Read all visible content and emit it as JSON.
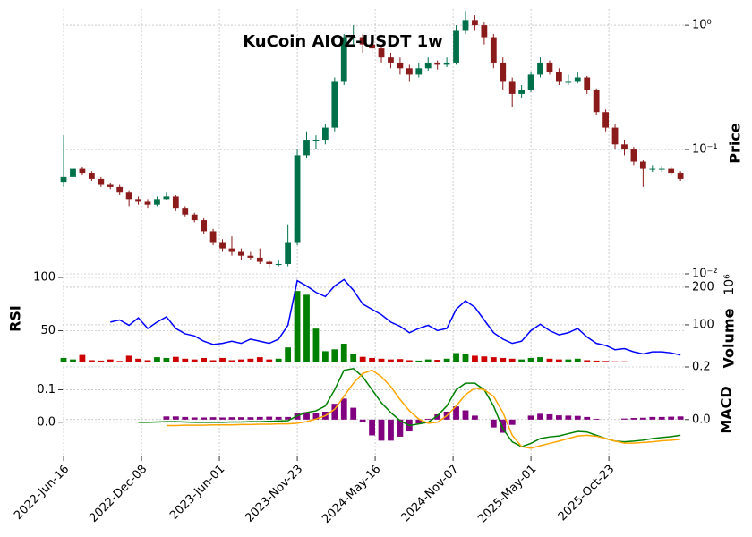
{
  "chart_data": {
    "type": "candlestick",
    "title": "KuCoin AIOZ-USDT 1w",
    "grid": true,
    "x": [
      0,
      3,
      6,
      9,
      12,
      15,
      18,
      21,
      24,
      27,
      30,
      33,
      36,
      39,
      42,
      45,
      48,
      51,
      54,
      57,
      60,
      63,
      66,
      69,
      72,
      75,
      78,
      81,
      84,
      87,
      90,
      93,
      96,
      99,
      102,
      105,
      108,
      111,
      114,
      117,
      120,
      123,
      126,
      129,
      132,
      135,
      138,
      141,
      144,
      147,
      150,
      153,
      156,
      159,
      162,
      165,
      168,
      171,
      174,
      177,
      180,
      183,
      186,
      189,
      192,
      195,
      198
    ],
    "xlim": [
      -0.3,
      199.4
    ],
    "xticks": [
      {
        "value": 0,
        "label": "2022-Jun-16"
      },
      {
        "value": 25,
        "label": "2022-Dec-08"
      },
      {
        "value": 50,
        "label": "2023-Jun-01"
      },
      {
        "value": 75,
        "label": "2023-Nov-23"
      },
      {
        "value": 100,
        "label": "2024-May-16"
      },
      {
        "value": 125,
        "label": "2024-Nov-07"
      },
      {
        "value": 150,
        "label": "2025-May-01"
      },
      {
        "value": 175,
        "label": "2025-Oct-23"
      }
    ],
    "price": {
      "label": "Price",
      "log_scale": true,
      "ylim": [
        0.01,
        1.35
      ],
      "yticks": [
        {
          "value": 1,
          "label": "10⁰"
        },
        {
          "value": 0.1,
          "label": "10⁻¹"
        },
        {
          "value": 0.01,
          "label": "10⁻²"
        }
      ],
      "up_color": "#00704a",
      "down_color": "#8b1a1a",
      "ohlc": [
        [
          0.055,
          0.13,
          0.05,
          0.06
        ],
        [
          0.06,
          0.075,
          0.057,
          0.07
        ],
        [
          0.07,
          0.072,
          0.062,
          0.065
        ],
        [
          0.065,
          0.067,
          0.056,
          0.058
        ],
        [
          0.058,
          0.06,
          0.05,
          0.052
        ],
        [
          0.052,
          0.054,
          0.048,
          0.05
        ],
        [
          0.05,
          0.052,
          0.043,
          0.045
        ],
        [
          0.045,
          0.047,
          0.035,
          0.04
        ],
        [
          0.04,
          0.042,
          0.036,
          0.038
        ],
        [
          0.038,
          0.04,
          0.034,
          0.036
        ],
        [
          0.036,
          0.042,
          0.035,
          0.04
        ],
        [
          0.04,
          0.045,
          0.039,
          0.042
        ],
        [
          0.042,
          0.043,
          0.032,
          0.034
        ],
        [
          0.034,
          0.035,
          0.029,
          0.03
        ],
        [
          0.03,
          0.031,
          0.026,
          0.027
        ],
        [
          0.027,
          0.028,
          0.021,
          0.022
        ],
        [
          0.022,
          0.023,
          0.017,
          0.018
        ],
        [
          0.018,
          0.019,
          0.015,
          0.016
        ],
        [
          0.016,
          0.02,
          0.014,
          0.015
        ],
        [
          0.015,
          0.016,
          0.013,
          0.014
        ],
        [
          0.014,
          0.015,
          0.013,
          0.0135
        ],
        [
          0.0135,
          0.016,
          0.012,
          0.0125
        ],
        [
          0.0125,
          0.013,
          0.011,
          0.012
        ],
        [
          0.012,
          0.013,
          0.0115,
          0.012
        ],
        [
          0.012,
          0.025,
          0.0115,
          0.018
        ],
        [
          0.018,
          0.1,
          0.017,
          0.09
        ],
        [
          0.09,
          0.14,
          0.085,
          0.12
        ],
        [
          0.12,
          0.13,
          0.1,
          0.12
        ],
        [
          0.12,
          0.16,
          0.11,
          0.15
        ],
        [
          0.15,
          0.38,
          0.14,
          0.35
        ],
        [
          0.35,
          0.85,
          0.33,
          0.8
        ],
        [
          0.8,
          1.0,
          0.7,
          0.8
        ],
        [
          0.8,
          0.85,
          0.6,
          0.7
        ],
        [
          0.7,
          0.8,
          0.6,
          0.65
        ],
        [
          0.65,
          0.7,
          0.5,
          0.55
        ],
        [
          0.55,
          0.6,
          0.45,
          0.5
        ],
        [
          0.5,
          0.55,
          0.4,
          0.45
        ],
        [
          0.45,
          0.48,
          0.35,
          0.4
        ],
        [
          0.4,
          0.5,
          0.38,
          0.45
        ],
        [
          0.45,
          0.55,
          0.43,
          0.5
        ],
        [
          0.5,
          0.52,
          0.44,
          0.48
        ],
        [
          0.48,
          0.55,
          0.46,
          0.5
        ],
        [
          0.5,
          1.0,
          0.48,
          0.9
        ],
        [
          0.9,
          1.3,
          0.85,
          1.1
        ],
        [
          1.1,
          1.2,
          0.9,
          1.0
        ],
        [
          1.0,
          1.05,
          0.7,
          0.8
        ],
        [
          0.8,
          0.85,
          0.45,
          0.5
        ],
        [
          0.5,
          0.55,
          0.3,
          0.35
        ],
        [
          0.35,
          0.38,
          0.22,
          0.28
        ],
        [
          0.28,
          0.33,
          0.26,
          0.3
        ],
        [
          0.3,
          0.42,
          0.29,
          0.4
        ],
        [
          0.4,
          0.55,
          0.38,
          0.5
        ],
        [
          0.5,
          0.52,
          0.4,
          0.42
        ],
        [
          0.42,
          0.45,
          0.33,
          0.35
        ],
        [
          0.35,
          0.4,
          0.33,
          0.35
        ],
        [
          0.35,
          0.42,
          0.34,
          0.38
        ],
        [
          0.38,
          0.39,
          0.28,
          0.3
        ],
        [
          0.3,
          0.31,
          0.19,
          0.2
        ],
        [
          0.2,
          0.21,
          0.14,
          0.15
        ],
        [
          0.15,
          0.16,
          0.1,
          0.11
        ],
        [
          0.11,
          0.12,
          0.09,
          0.1
        ],
        [
          0.1,
          0.105,
          0.075,
          0.08
        ],
        [
          0.08,
          0.082,
          0.05,
          0.07
        ],
        [
          0.07,
          0.075,
          0.066,
          0.07
        ],
        [
          0.07,
          0.074,
          0.066,
          0.07
        ],
        [
          0.07,
          0.072,
          0.062,
          0.065
        ],
        [
          0.065,
          0.067,
          0.056,
          0.058
        ]
      ]
    },
    "volume": {
      "label": "Volume",
      "offset_label": "10⁶",
      "ylim": [
        0,
        226
      ],
      "yticks": [
        100,
        200
      ],
      "up_color": "#008000",
      "down_color": "#cc0000",
      "values": [
        12,
        8,
        20,
        6,
        5,
        8,
        4,
        18,
        10,
        6,
        14,
        12,
        15,
        10,
        8,
        12,
        6,
        12,
        6,
        8,
        10,
        14,
        8,
        10,
        40,
        190,
        180,
        90,
        30,
        35,
        50,
        22,
        15,
        12,
        10,
        8,
        9,
        6,
        5,
        8,
        7,
        10,
        25,
        22,
        18,
        16,
        14,
        12,
        10,
        8,
        12,
        14,
        10,
        8,
        8,
        10,
        6,
        5,
        4,
        3,
        3,
        2,
        2,
        2,
        1,
        1,
        1
      ]
    },
    "rsi": {
      "label": "RSI",
      "ylim": [
        20,
        100
      ],
      "yticks": [
        50,
        100
      ],
      "color": "#0000ff",
      "values": [
        null,
        null,
        null,
        null,
        null,
        58,
        60,
        55,
        62,
        52,
        58,
        63,
        52,
        47,
        45,
        40,
        37,
        38,
        40,
        38,
        42,
        40,
        38,
        42,
        55,
        97,
        92,
        86,
        82,
        92,
        98,
        88,
        75,
        70,
        65,
        58,
        54,
        48,
        52,
        55,
        50,
        52,
        70,
        78,
        72,
        60,
        48,
        42,
        38,
        40,
        50,
        56,
        50,
        46,
        48,
        52,
        44,
        38,
        36,
        32,
        33,
        30,
        28,
        30,
        30,
        29,
        27
      ]
    },
    "macd": {
      "label": "MACD",
      "ylim": [
        -0.105,
        0.17
      ],
      "yticks": [
        {
          "value": 0,
          "label": "0.0"
        },
        {
          "value": 0.1,
          "label": "0.1"
        }
      ],
      "y2lim": [
        -0.14,
        0.2
      ],
      "y2ticks": [
        {
          "value": 0,
          "label": "0.0"
        },
        {
          "value": 0.2,
          "label": "0.2"
        }
      ],
      "series": [
        {
          "color": "#008000",
          "values": [
            null,
            null,
            null,
            null,
            null,
            null,
            null,
            null,
            0.0,
            0.0,
            0.001,
            0.002,
            0.002,
            0.001,
            0.0,
            0.0,
            0.0,
            0.0,
            0.001,
            0.001,
            0.002,
            0.002,
            0.003,
            0.004,
            0.005,
            0.02,
            0.03,
            0.035,
            0.05,
            0.1,
            0.16,
            0.165,
            0.14,
            0.1,
            0.06,
            0.03,
            0.005,
            -0.01,
            -0.005,
            0.0,
            0.02,
            0.05,
            0.1,
            0.12,
            0.12,
            0.1,
            0.05,
            -0.02,
            -0.06,
            -0.075,
            -0.065,
            -0.05,
            -0.045,
            -0.042,
            -0.035,
            -0.028,
            -0.03,
            -0.04,
            -0.05,
            -0.058,
            -0.06,
            -0.058,
            -0.055,
            -0.05,
            -0.047,
            -0.044,
            -0.04
          ]
        },
        {
          "color": "#ffa500",
          "values": [
            null,
            null,
            null,
            null,
            null,
            null,
            null,
            null,
            null,
            null,
            null,
            -0.01,
            -0.01,
            -0.009,
            -0.009,
            -0.009,
            -0.008,
            -0.008,
            -0.008,
            -0.007,
            -0.007,
            -0.006,
            -0.006,
            -0.005,
            -0.005,
            -0.003,
            0.002,
            0.01,
            0.02,
            0.04,
            0.08,
            0.12,
            0.15,
            0.16,
            0.14,
            0.11,
            0.07,
            0.035,
            0.01,
            -0.003,
            0.0,
            0.02,
            0.05,
            0.085,
            0.105,
            0.1,
            0.08,
            0.03,
            -0.04,
            -0.075,
            -0.08,
            -0.072,
            -0.065,
            -0.058,
            -0.05,
            -0.042,
            -0.04,
            -0.043,
            -0.05,
            -0.058,
            -0.064,
            -0.064,
            -0.062,
            -0.06,
            -0.057,
            -0.055,
            -0.052
          ]
        },
        {
          "color": "#800080",
          "axis": "y2",
          "values": [
            null,
            null,
            null,
            null,
            null,
            null,
            null,
            null,
            null,
            null,
            null,
            0.012,
            0.012,
            0.01,
            0.008,
            0.008,
            0.009,
            0.008,
            0.009,
            0.009,
            0.009,
            0.01,
            0.011,
            0.01,
            0.01,
            0.023,
            0.028,
            0.025,
            0.03,
            0.06,
            0.08,
            0.045,
            -0.01,
            -0.06,
            -0.08,
            -0.08,
            -0.065,
            -0.045,
            -0.015,
            0.003,
            0.02,
            0.03,
            0.05,
            0.035,
            0.015,
            0.0,
            -0.03,
            -0.05,
            -0.02,
            0.0,
            0.015,
            0.022,
            0.02,
            0.016,
            0.015,
            0.014,
            0.01,
            0.003,
            0.0,
            0.0,
            0.004,
            0.006,
            0.007,
            0.01,
            0.01,
            0.011,
            0.012
          ]
        }
      ]
    }
  }
}
